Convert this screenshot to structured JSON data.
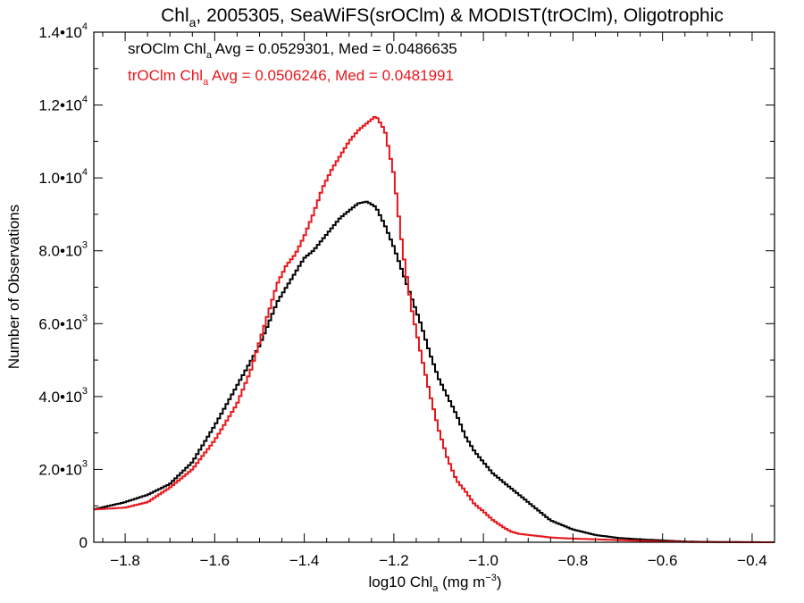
{
  "chart_data": {
    "type": "line",
    "title": {
      "pre": "Chl",
      "sub": "a",
      "post": ", 2005305, SeaWiFS(srOClm) & MODIST(trOClm), Oligotrophic"
    },
    "xlabel": {
      "pre": "log10 Chl",
      "sub": "a",
      "post": " (mg m",
      "sup": "−3",
      "end": ")"
    },
    "ylabel": "Number of Observations",
    "xlim": [
      -1.87,
      -0.35
    ],
    "ylim": [
      0,
      14000
    ],
    "x_ticks": [
      {
        "value": -1.8,
        "label": "−1.8"
      },
      {
        "value": -1.6,
        "label": "−1.6"
      },
      {
        "value": -1.4,
        "label": "−1.4"
      },
      {
        "value": -1.2,
        "label": "−1.2"
      },
      {
        "value": -1.0,
        "label": "−1.0"
      },
      {
        "value": -0.8,
        "label": "−0.8"
      },
      {
        "value": -0.6,
        "label": "−0.6"
      },
      {
        "value": -0.4,
        "label": "−0.4"
      }
    ],
    "y_ticks": [
      {
        "value": 0,
        "mant": "0",
        "exp": ""
      },
      {
        "value": 2000,
        "mant": "2.0•10",
        "exp": "3"
      },
      {
        "value": 4000,
        "mant": "4.0•10",
        "exp": "3"
      },
      {
        "value": 6000,
        "mant": "6.0•10",
        "exp": "3"
      },
      {
        "value": 8000,
        "mant": "8.0•10",
        "exp": "3"
      },
      {
        "value": 10000,
        "mant": "1.0•10",
        "exp": "4"
      },
      {
        "value": 12000,
        "mant": "1.2•10",
        "exp": "4"
      },
      {
        "value": 14000,
        "mant": "1.4•10",
        "exp": "4"
      }
    ],
    "grid": false,
    "legend_position": "top-left",
    "series": [
      {
        "color": "#000000",
        "annotation": {
          "name": "srOClm Chl",
          "sub": "a",
          "stats": " Avg = 0.0529301, Med = 0.0486635"
        },
        "x": [
          -1.87,
          -1.8,
          -1.75,
          -1.7,
          -1.65,
          -1.6,
          -1.55,
          -1.5,
          -1.48,
          -1.46,
          -1.44,
          -1.42,
          -1.4,
          -1.38,
          -1.36,
          -1.34,
          -1.32,
          -1.3,
          -1.28,
          -1.26,
          -1.24,
          -1.22,
          -1.2,
          -1.18,
          -1.16,
          -1.14,
          -1.12,
          -1.1,
          -1.08,
          -1.06,
          -1.04,
          -1.02,
          -1.0,
          -0.98,
          -0.95,
          -0.92,
          -0.9,
          -0.87,
          -0.85,
          -0.8,
          -0.75,
          -0.7,
          -0.65,
          -0.6,
          -0.55,
          -0.5,
          -0.45,
          -0.4,
          -0.35
        ],
        "y": [
          900,
          1100,
          1300,
          1600,
          2200,
          3200,
          4300,
          5400,
          6000,
          6600,
          7000,
          7400,
          7800,
          8000,
          8300,
          8600,
          8900,
          9100,
          9300,
          9350,
          9200,
          8700,
          8100,
          7400,
          6700,
          6000,
          5200,
          4500,
          4000,
          3500,
          2900,
          2500,
          2200,
          1900,
          1600,
          1300,
          1100,
          800,
          600,
          350,
          200,
          120,
          80,
          50,
          20,
          10,
          5,
          2,
          0
        ]
      },
      {
        "color": "#e8161b",
        "annotation": {
          "name": "trOClm Chl",
          "sub": "a",
          "stats": " Avg = 0.0506246, Med = 0.0481991"
        },
        "x": [
          -1.87,
          -1.8,
          -1.75,
          -1.7,
          -1.65,
          -1.6,
          -1.55,
          -1.52,
          -1.5,
          -1.48,
          -1.46,
          -1.44,
          -1.42,
          -1.4,
          -1.38,
          -1.36,
          -1.34,
          -1.32,
          -1.3,
          -1.28,
          -1.26,
          -1.24,
          -1.22,
          -1.2,
          -1.18,
          -1.16,
          -1.14,
          -1.12,
          -1.1,
          -1.08,
          -1.06,
          -1.04,
          -1.02,
          -1.0,
          -0.98,
          -0.96,
          -0.94,
          -0.92,
          -0.9,
          -0.87,
          -0.85,
          -0.8,
          -0.75,
          -0.7,
          -0.65,
          -0.6,
          -0.55,
          -0.5,
          -0.45,
          -0.4,
          -0.35
        ],
        "y": [
          900,
          950,
          1100,
          1500,
          2000,
          2800,
          3800,
          4700,
          5500,
          6300,
          7100,
          7600,
          7900,
          8400,
          9000,
          9700,
          10200,
          10600,
          11000,
          11300,
          11500,
          11700,
          11300,
          10100,
          8000,
          6400,
          5200,
          4100,
          3100,
          2300,
          1700,
          1400,
          1050,
          850,
          620,
          450,
          300,
          230,
          200,
          160,
          130,
          100,
          80,
          60,
          40,
          20,
          10,
          5,
          2,
          1,
          0
        ]
      }
    ]
  }
}
